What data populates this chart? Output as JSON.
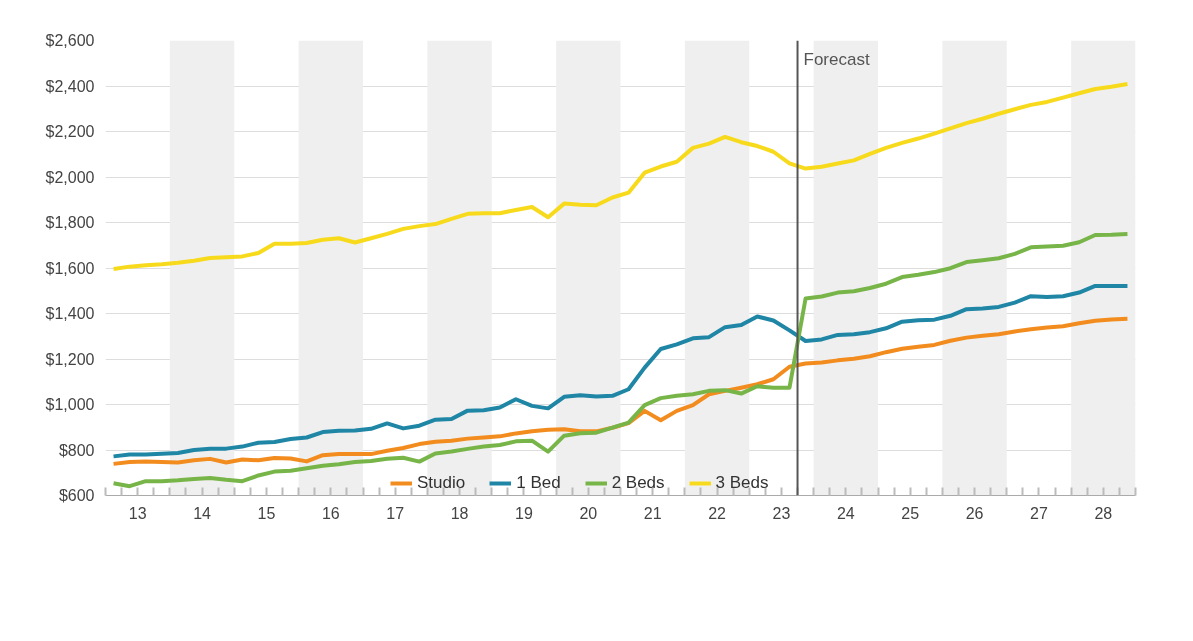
{
  "chart_data": {
    "type": "line",
    "x": [
      12.625,
      12.875,
      13.125,
      13.375,
      13.625,
      13.875,
      14.125,
      14.375,
      14.625,
      14.875,
      15.125,
      15.375,
      15.625,
      15.875,
      16.125,
      16.375,
      16.625,
      16.875,
      17.125,
      17.375,
      17.625,
      17.875,
      18.125,
      18.375,
      18.625,
      18.875,
      19.125,
      19.375,
      19.625,
      19.875,
      20.125,
      20.375,
      20.625,
      20.875,
      21.125,
      21.375,
      21.625,
      21.875,
      22.125,
      22.375,
      22.625,
      22.875,
      23.125,
      23.375,
      23.625,
      23.875,
      24.125,
      24.375,
      24.625,
      24.875,
      25.125,
      25.375,
      25.625,
      25.875,
      26.125,
      26.375,
      26.625,
      26.875,
      27.125,
      27.375,
      27.625,
      27.875,
      28.125,
      28.375
    ],
    "series": [
      {
        "name": "Studio",
        "color": "#f28c1e",
        "values": [
          739,
          747,
          749,
          747,
          745,
          755,
          761,
          745,
          758,
          755,
          765,
          763,
          750,
          777,
          782,
          782,
          782,
          797,
          809,
          826,
          836,
          841,
          850,
          855,
          860,
          873,
          882,
          889,
          891,
          882,
          882,
          898,
          918,
          972,
          931,
          972,
          997,
          1045,
          1060,
          1074,
          1089,
          1111,
          1166,
          1180,
          1185,
          1194,
          1201,
          1212,
          1230,
          1245,
          1254,
          1262,
          1280,
          1294,
          1302,
          1309,
          1321,
          1331,
          1338,
          1344,
          1357,
          1368,
          1374,
          1377
        ]
      },
      {
        "name": "1 Bed",
        "color": "#1f86a6",
        "values": [
          772,
          780,
          780,
          784,
          787,
          800,
          806,
          806,
          815,
          832,
          835,
          848,
          855,
          879,
          885,
          886,
          893,
          917,
          895,
          907,
          933,
          936,
          973,
          975,
          987,
          1023,
          994,
          983,
          1034,
          1041,
          1035,
          1038,
          1067,
          1162,
          1244,
          1264,
          1291,
          1296,
          1340,
          1349,
          1387,
          1369,
          1326,
          1279,
          1286,
          1306,
          1309,
          1318,
          1335,
          1364,
          1370,
          1373,
          1390,
          1419,
          1422,
          1429,
          1448,
          1476,
          1473,
          1476,
          1492,
          1521,
          1521,
          1521
        ]
      },
      {
        "name": "2 Beds",
        "color": "#78b548",
        "values": [
          654,
          641,
          663,
          663,
          667,
          673,
          677,
          669,
          663,
          688,
          705,
          709,
          720,
          731,
          737,
          747,
          752,
          762,
          766,
          749,
          785,
          793,
          805,
          815,
          822,
          838,
          841,
          793,
          863,
          874,
          876,
          898,
          920,
          997,
          1028,
          1038,
          1045,
          1060,
          1063,
          1048,
          1080,
          1074,
          1074,
          1466,
          1475,
          1492,
          1498,
          1512,
          1531,
          1560,
          1570,
          1582,
          1599,
          1626,
          1634,
          1643,
          1662,
          1691,
          1694,
          1698,
          1713,
          1745,
          1746,
          1749
        ]
      },
      {
        "name": "3 Beds",
        "color": "#f8da1c",
        "values": [
          1596,
          1606,
          1612,
          1616,
          1623,
          1632,
          1644,
          1647,
          1651,
          1666,
          1707,
          1707,
          1710,
          1724,
          1731,
          1712,
          1731,
          1750,
          1772,
          1784,
          1793,
          1816,
          1838,
          1841,
          1841,
          1855,
          1868,
          1823,
          1883,
          1878,
          1876,
          1910,
          1931,
          2019,
          2046,
          2067,
          2128,
          2147,
          2176,
          2153,
          2136,
          2111,
          2060,
          2037,
          2045,
          2059,
          2073,
          2102,
          2128,
          2150,
          2169,
          2191,
          2214,
          2237,
          2256,
          2278,
          2298,
          2317,
          2330,
          2349,
          2368,
          2387,
          2397,
          2409
        ]
      }
    ],
    "xlim": [
      12.5,
      28.5
    ],
    "xticks": [
      13,
      14,
      15,
      16,
      17,
      18,
      19,
      20,
      21,
      22,
      23,
      24,
      25,
      26,
      27,
      28
    ],
    "ylim": [
      600,
      2600
    ],
    "yticks": [
      {
        "value": 600,
        "label": "$600"
      },
      {
        "value": 800,
        "label": "$800"
      },
      {
        "value": 1000,
        "label": "$1,000"
      },
      {
        "value": 1200,
        "label": "$1,200"
      },
      {
        "value": 1400,
        "label": "$1,400"
      },
      {
        "value": 1600,
        "label": "$1,600"
      },
      {
        "value": 1800,
        "label": "$1,800"
      },
      {
        "value": 2000,
        "label": "$2,000"
      },
      {
        "value": 2200,
        "label": "$2,200"
      },
      {
        "value": 2400,
        "label": "$2,400"
      },
      {
        "value": 2600,
        "label": "$2,600"
      }
    ],
    "ref_lines": [
      {
        "axis": "x",
        "value": 23.25,
        "label": "Forecast",
        "color": "#555555"
      }
    ],
    "bands": [
      {
        "axis": "x",
        "from": 13.5,
        "to": 14.5,
        "color": "#efefef"
      },
      {
        "axis": "x",
        "from": 15.5,
        "to": 16.5,
        "color": "#efefef"
      },
      {
        "axis": "x",
        "from": 17.5,
        "to": 18.5,
        "color": "#efefef"
      },
      {
        "axis": "x",
        "from": 19.5,
        "to": 20.5,
        "color": "#efefef"
      },
      {
        "axis": "x",
        "from": 21.5,
        "to": 22.5,
        "color": "#efefef"
      },
      {
        "axis": "x",
        "from": 23.5,
        "to": 24.5,
        "color": "#efefef"
      },
      {
        "axis": "x",
        "from": 25.5,
        "to": 26.5,
        "color": "#efefef"
      },
      {
        "axis": "x",
        "from": 27.5,
        "to": 28.5,
        "color": "#efefef"
      }
    ],
    "grid": "y",
    "legend": "bottom",
    "line_style": "solid"
  }
}
